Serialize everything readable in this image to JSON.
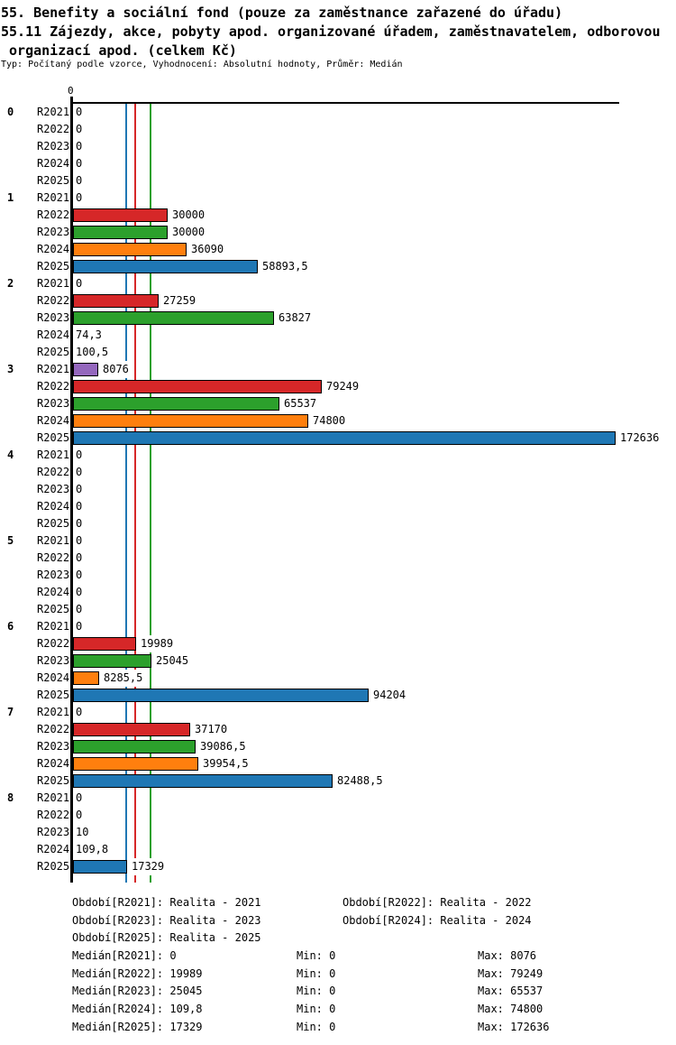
{
  "title": {
    "line1": "55. Benefity a sociální fond (pouze za zaměstnance zařazené do úřadu)",
    "line2": "55.11 Zájezdy, akce, pobyty apod. organizované úřadem, zaměstnavatelem, odborovou",
    "line3": " organizací apod. (celkem Kč)",
    "subtitle": "Typ: Počítaný podle vzorce, Vyhodnocení: Absolutní hodnoty, Průměr: Medián"
  },
  "chart_data": {
    "type": "bar",
    "orientation": "horizontal",
    "title": "55.11 Zájezdy, akce, pobyty apod. organizované úřadem, zaměstnavatelem, odborovou organizací apod. (celkem Kč)",
    "xlim": [
      0,
      172636
    ],
    "zero_tick_label": "0",
    "grid": false,
    "categories": [
      "0",
      "1",
      "2",
      "3",
      "4",
      "5",
      "6",
      "7",
      "8"
    ],
    "series_keys": [
      "R2021",
      "R2022",
      "R2023",
      "R2024",
      "R2025"
    ],
    "colors": {
      "R2021": "#9467bd",
      "R2022": "#d62728",
      "R2023": "#2ca02c",
      "R2024": "#ff7f0e",
      "R2025": "#1f77b4"
    },
    "axis_color": "#000000",
    "groups": [
      {
        "label": "0",
        "values": [
          0,
          0,
          0,
          0,
          0
        ],
        "value_labels": [
          "0",
          "0",
          "0",
          "0",
          "0"
        ]
      },
      {
        "label": "1",
        "values": [
          0,
          30000,
          30000,
          36090,
          58893.5
        ],
        "value_labels": [
          "0",
          "30000",
          "30000",
          "36090",
          "58893,5"
        ]
      },
      {
        "label": "2",
        "values": [
          0,
          27259,
          63827,
          74.3,
          100.5
        ],
        "value_labels": [
          "0",
          "27259",
          "63827",
          "74,3",
          "100,5"
        ]
      },
      {
        "label": "3",
        "values": [
          8076,
          79249,
          65537,
          74800,
          172636
        ],
        "value_labels": [
          "8076",
          "79249",
          "65537",
          "74800",
          "172636"
        ]
      },
      {
        "label": "4",
        "values": [
          0,
          0,
          0,
          0,
          0
        ],
        "value_labels": [
          "0",
          "0",
          "0",
          "0",
          "0"
        ]
      },
      {
        "label": "5",
        "values": [
          0,
          0,
          0,
          0,
          0
        ],
        "value_labels": [
          "0",
          "0",
          "0",
          "0",
          "0"
        ]
      },
      {
        "label": "6",
        "values": [
          0,
          19989,
          25045,
          8285.5,
          94204
        ],
        "value_labels": [
          "0",
          "19989",
          "25045",
          "8285,5",
          "94204"
        ]
      },
      {
        "label": "7",
        "values": [
          0,
          37170,
          39086.5,
          39954.5,
          82488.5
        ],
        "value_labels": [
          "0",
          "37170",
          "39086,5",
          "39954,5",
          "82488,5"
        ]
      },
      {
        "label": "8",
        "values": [
          0,
          0,
          10,
          109.8,
          17329
        ],
        "value_labels": [
          "0",
          "0",
          "10",
          "109,8",
          "17329"
        ]
      }
    ],
    "medians": {
      "R2021": 0,
      "R2022": 19989,
      "R2023": 25045,
      "R2024": 109.8,
      "R2025": 17329
    }
  },
  "legend": {
    "period_rows": [
      [
        "Období[R2021]: Realita - 2021",
        "Období[R2022]: Realita - 2022"
      ],
      [
        "Období[R2023]: Realita - 2023",
        "Období[R2024]: Realita - 2024"
      ],
      [
        "Období[R2025]: Realita - 2025"
      ]
    ],
    "stat_rows": [
      {
        "median": "Medián[R2021]: 0",
        "min": "Min: 0",
        "max": "Max: 8076"
      },
      {
        "median": "Medián[R2022]: 19989",
        "min": "Min: 0",
        "max": "Max: 79249"
      },
      {
        "median": "Medián[R2023]: 25045",
        "min": "Min: 0",
        "max": "Max: 65537"
      },
      {
        "median": "Medián[R2024]: 109,8",
        "min": "Min: 0",
        "max": "Max: 74800"
      },
      {
        "median": "Medián[R2025]: 17329",
        "min": "Min: 0",
        "max": "Max: 172636"
      }
    ]
  }
}
